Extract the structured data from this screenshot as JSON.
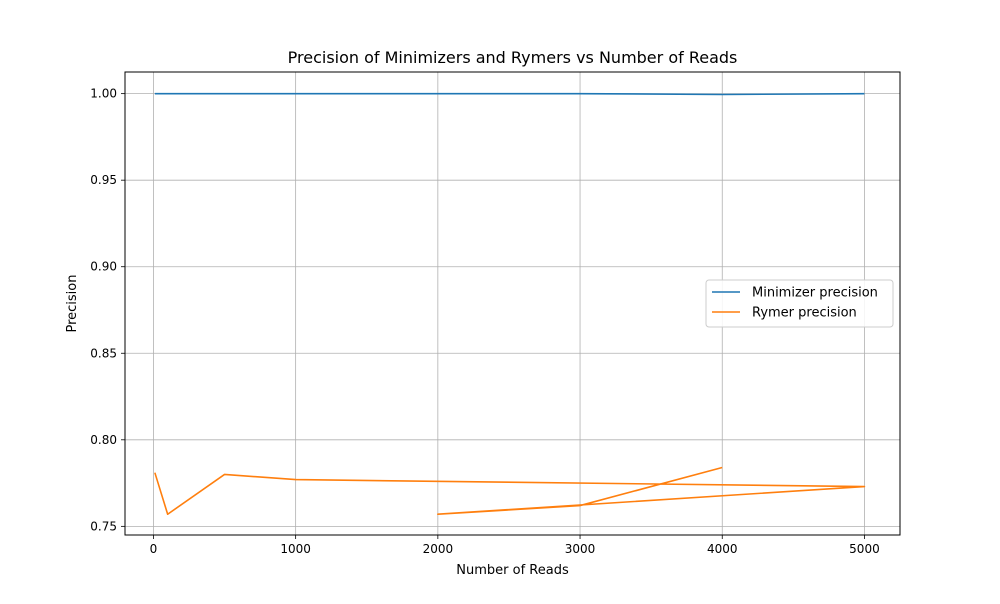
{
  "chart_data": {
    "type": "line",
    "title": "Precision of Minimizers and Rymers vs Number of Reads",
    "xlabel": "Number of Reads",
    "ylabel": "Precision",
    "xlim": [
      -200,
      5250
    ],
    "ylim": [
      0.745,
      1.0125
    ],
    "xticks": [
      0,
      1000,
      2000,
      3000,
      4000,
      5000
    ],
    "xtick_labels": [
      "0",
      "1000",
      "2000",
      "3000",
      "4000",
      "5000"
    ],
    "yticks": [
      0.75,
      0.8,
      0.85,
      0.9,
      0.95,
      1.0
    ],
    "ytick_labels": [
      "0.75",
      "0.80",
      "0.85",
      "0.90",
      "0.95",
      "1.00"
    ],
    "grid": true,
    "legend_position": "center-right",
    "series": [
      {
        "name": "Minimizer precision",
        "color": "#1f77b4",
        "x": [
          10,
          100,
          500,
          1000,
          2000,
          3000,
          4000,
          5000
        ],
        "y": [
          1.0,
          1.0,
          1.0,
          1.0,
          1.0,
          1.0,
          0.9995,
          1.0
        ]
      },
      {
        "name": "Rymer precision",
        "color": "#ff7f0e",
        "x": [
          10,
          100,
          500,
          1000,
          5000,
          2000,
          3000,
          4000
        ],
        "y": [
          0.781,
          0.757,
          0.78,
          0.777,
          0.773,
          0.757,
          0.762,
          0.784
        ]
      }
    ]
  }
}
